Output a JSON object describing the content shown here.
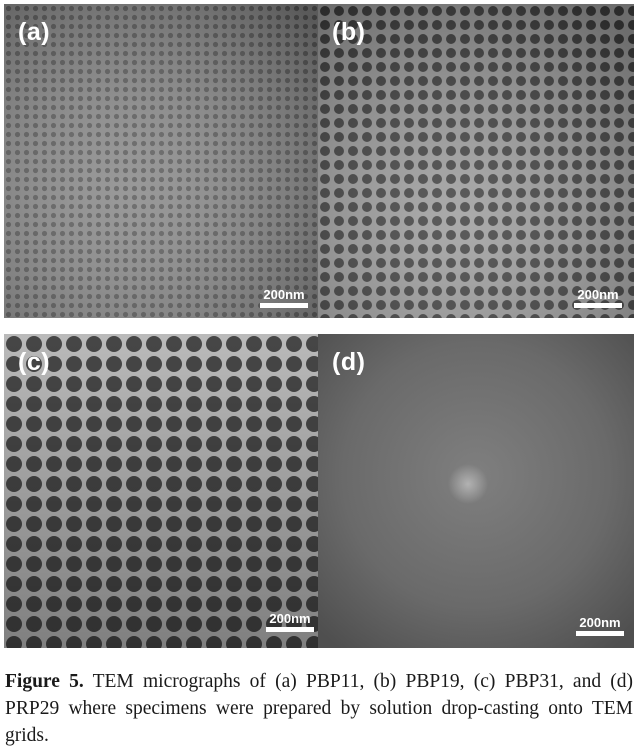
{
  "panels": [
    {
      "label": "(a)",
      "scale_bar": "200nm"
    },
    {
      "label": "(b)",
      "scale_bar": "200nm"
    },
    {
      "label": "(c)",
      "scale_bar": "200nm"
    },
    {
      "label": "(d)",
      "scale_bar": "200nm"
    }
  ],
  "caption": {
    "figure_label": "Figure 5.",
    "text": "TEM micrographs of (a) PBP11, (b) PBP19, (c) PBP31, and (d) PRP29 where specimens were prepared by solution drop-casting onto TEM grids."
  }
}
